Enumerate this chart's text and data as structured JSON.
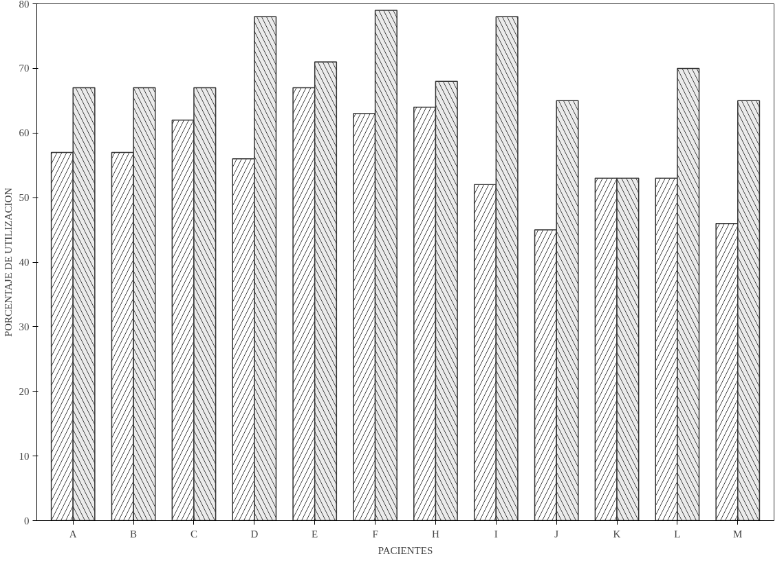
{
  "chart_data": {
    "type": "bar",
    "xlabel": "PACIENTES",
    "ylabel": "PORCENTAJE DE UTILIZACION",
    "categories": [
      "A",
      "B",
      "C",
      "D",
      "E",
      "F",
      "H",
      "I",
      "J",
      "K",
      "L",
      "M"
    ],
    "series": [
      {
        "color": "#ffffff",
        "values": [
          57,
          57,
          62,
          56,
          67,
          63,
          64,
          52,
          45,
          53,
          53,
          46
        ]
      },
      {
        "color": "#ebebeb",
        "values": [
          67,
          67,
          67,
          78,
          71,
          79,
          68,
          78,
          65,
          53,
          70,
          65
        ]
      }
    ],
    "ylim": [
      0,
      80
    ],
    "yticks": [
      0,
      10,
      20,
      30,
      40,
      50,
      60,
      70,
      80
    ],
    "grid": false
  }
}
